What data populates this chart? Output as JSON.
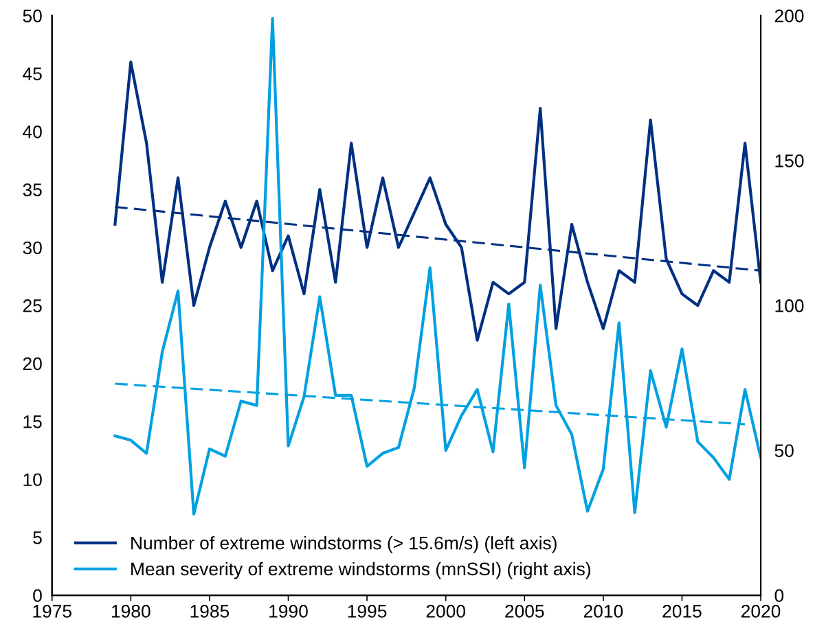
{
  "chart_data": {
    "type": "line",
    "x": [
      1979,
      1980,
      1981,
      1982,
      1983,
      1984,
      1985,
      1986,
      1987,
      1988,
      1989,
      1990,
      1991,
      1992,
      1993,
      1994,
      1995,
      1996,
      1997,
      1998,
      1999,
      2000,
      2001,
      2002,
      2003,
      2004,
      2005,
      2006,
      2007,
      2008,
      2009,
      2010,
      2011,
      2012,
      2013,
      2014,
      2015,
      2016,
      2017,
      2018,
      2019,
      2020
    ],
    "series": [
      {
        "name": "Number of extreme windstorms (> 15.6m/s) (left axis)",
        "color": "#003082",
        "values": [
          32,
          46,
          39,
          27,
          36,
          25,
          30,
          34,
          30,
          34,
          28,
          31,
          26,
          35,
          27,
          39,
          30,
          36,
          30,
          33,
          36,
          32,
          30,
          22,
          27,
          26,
          27,
          42,
          23,
          32,
          27,
          23,
          28,
          27,
          41,
          29,
          26,
          25,
          28,
          27,
          39,
          27
        ]
      },
      {
        "name": "Mean severity of extreme windstorms (mnSSI) (right axis)",
        "color": "#00a0e1",
        "axis": "y2",
        "values": [
          55,
          53.5,
          49,
          84,
          105,
          28,
          50.5,
          48,
          67,
          65.5,
          199,
          51.5,
          68.5,
          103,
          69,
          69,
          44.5,
          49,
          51,
          71.5,
          113,
          50,
          62,
          71,
          49.5,
          100.5,
          44,
          107,
          65.5,
          55.5,
          29,
          43.5,
          94,
          28.5,
          77.5,
          58,
          85,
          53,
          47.5,
          40,
          71,
          47.5
        ]
      },
      {
        "color": "#003082",
        "line_style": "dashed",
        "x": [
          1979,
          2020
        ],
        "values": [
          33.5,
          28
        ]
      },
      {
        "color": "#00a0e1",
        "line_style": "dashed",
        "axis": "y2",
        "x": [
          1979,
          2019
        ],
        "values": [
          73,
          59
        ]
      }
    ],
    "xlim": [
      1975,
      2020
    ],
    "xticks": [
      1975,
      1980,
      1985,
      1990,
      1995,
      2000,
      2005,
      2010,
      2015,
      2020
    ],
    "ylim": [
      0,
      50
    ],
    "yticks": [
      0,
      5,
      10,
      15,
      20,
      25,
      30,
      35,
      40,
      45,
      50
    ],
    "y2lim": [
      0,
      200
    ],
    "y2ticks": [
      0,
      50,
      100,
      150,
      200
    ],
    "grid": false,
    "legend": "bottom left"
  }
}
